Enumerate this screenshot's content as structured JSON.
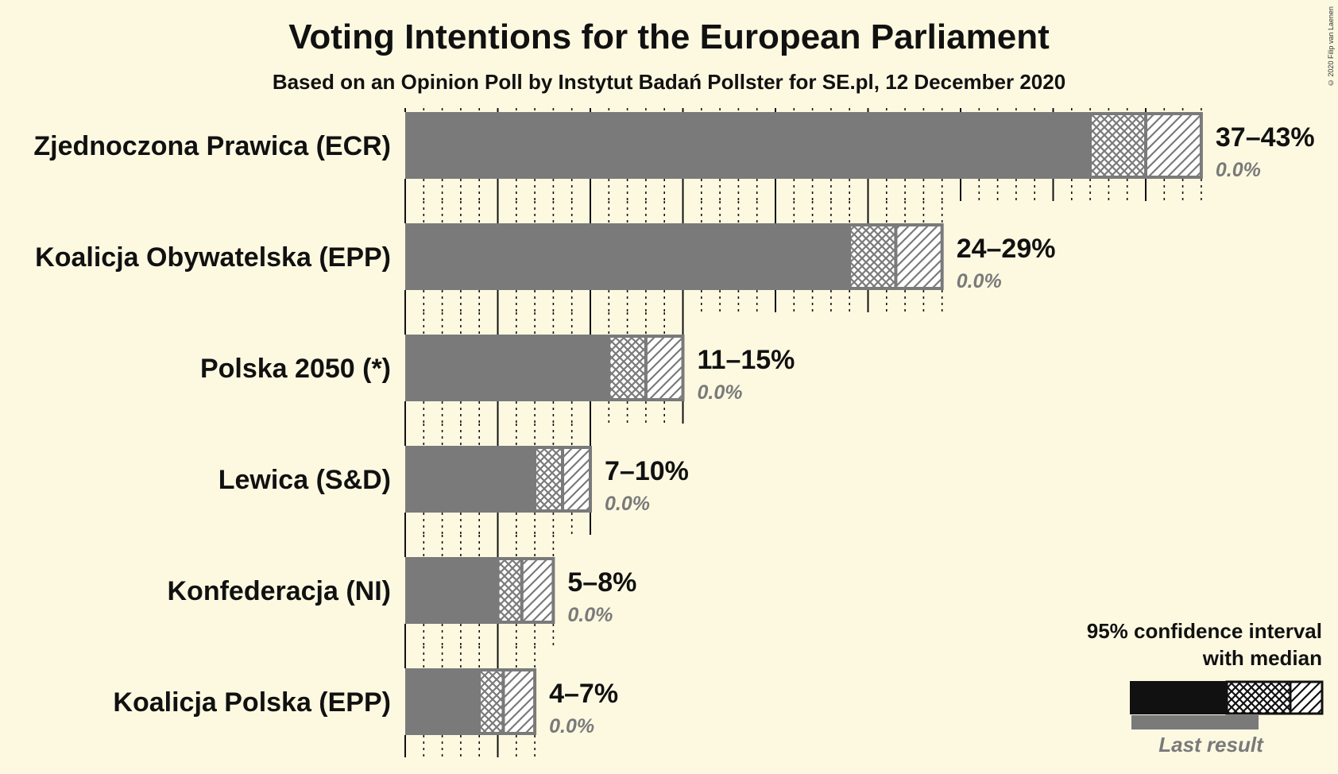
{
  "title": "Voting Intentions for the European Parliament",
  "subtitle": "Based on an Opinion Poll by Instytut Badań Pollster for SE.pl, 12 December 2020",
  "copyright": "© 2020 Filip van Laenen",
  "colors": {
    "background": "#fdf9e1",
    "bar": "#7a7a7a",
    "text": "#111111",
    "last_result_text": "#7a7a7a",
    "legend_bar": "#111111"
  },
  "legend": {
    "line1": "95% confidence interval",
    "line2": "with median",
    "last_result": "Last result"
  },
  "chart_data": {
    "type": "bar",
    "orientation": "horizontal",
    "categories": [
      "Zjednoczona Prawica (ECR)",
      "Koalicja Obywatelska (EPP)",
      "Polska 2050 (*)",
      "Lewica (S&D)",
      "Konfederacja (NI)",
      "Koalicja Polska (EPP)"
    ],
    "ci_low": [
      37,
      24,
      11,
      7,
      5,
      4
    ],
    "median": [
      40,
      26.5,
      13,
      8.5,
      6.3,
      5.3
    ],
    "ci_high": [
      43,
      29,
      15,
      10,
      8,
      7
    ],
    "range_labels": [
      "37–43%",
      "24–29%",
      "11–15%",
      "7–10%",
      "5–8%",
      "4–7%"
    ],
    "last_result": [
      0,
      0,
      0,
      0,
      0,
      0
    ],
    "last_result_labels": [
      "0.0%",
      "0.0%",
      "0.0%",
      "0.0%",
      "0.0%",
      "0.0%"
    ],
    "x_unit": "%",
    "xlim": [
      0,
      43
    ],
    "tick_major_every": 5,
    "tick_minor_every": 1,
    "grid": true,
    "legend_position": "bottom-right"
  }
}
